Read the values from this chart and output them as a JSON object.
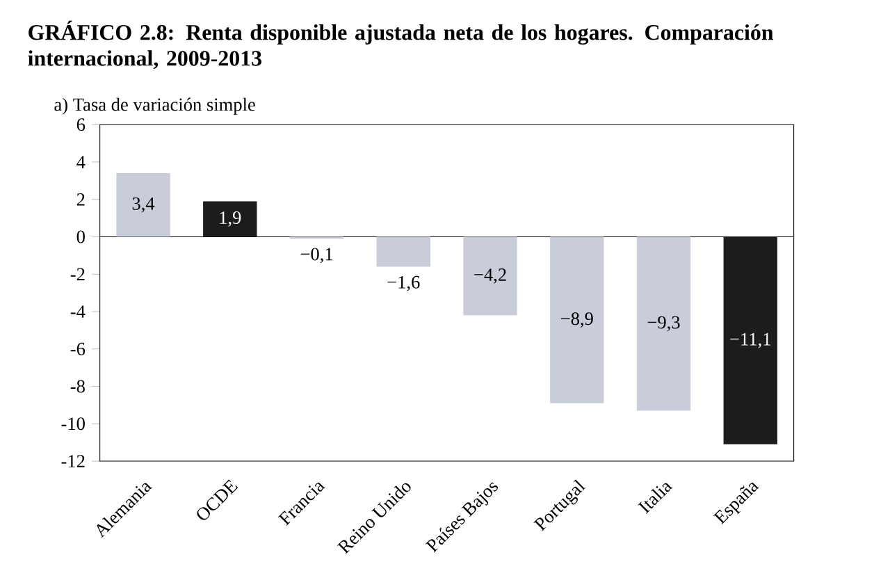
{
  "chart_data": {
    "type": "bar",
    "title": "GRÁFICO 2.8: Renta disponible ajustada neta de los hogares. Comparación internacional, 2009-2013",
    "subtitle": "a) Tasa de variación simple",
    "categories": [
      "Alemania",
      "OCDE",
      "Francia",
      "Reino Unido",
      "Países Bajos",
      "Portugal",
      "Italia",
      "España"
    ],
    "values": [
      3.4,
      1.9,
      -0.1,
      -1.6,
      -4.2,
      -8.9,
      -9.3,
      -11.1
    ],
    "colors": [
      "#c9cdd9",
      "#1c1c1c",
      "#c9cdd9",
      "#c9cdd9",
      "#c9cdd9",
      "#c9cdd9",
      "#c9cdd9",
      "#1c1c1c"
    ],
    "value_labels": [
      "3,4",
      "1,9",
      "−0,1",
      "−1,6",
      "−4,2",
      "−8,9",
      "−9,3",
      "−11,1"
    ],
    "ylim": [
      -12,
      6
    ],
    "yticks": [
      -12,
      -10,
      -8,
      -6,
      -4,
      -2,
      0,
      2,
      4,
      6
    ],
    "ref_lines": [
      {
        "axis": "y",
        "value": 0,
        "color": "#000000"
      }
    ]
  }
}
